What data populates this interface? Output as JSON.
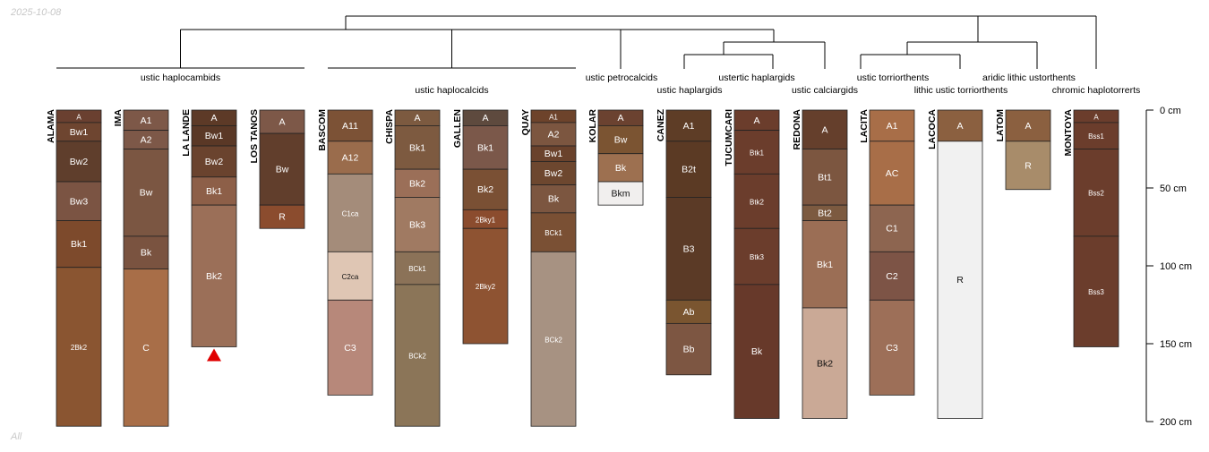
{
  "header": {
    "date": "2025-10-08",
    "panel_label": "All"
  },
  "diagram": {
    "depth_axis": {
      "unit": "cm",
      "max_depth": 200,
      "ticks": [
        {
          "depth": 0,
          "label": "0 cm"
        },
        {
          "depth": 50,
          "label": "50 cm"
        },
        {
          "depth": 100,
          "label": "100 cm"
        },
        {
          "depth": 150,
          "label": "150 cm"
        },
        {
          "depth": 200,
          "label": "200 cm"
        }
      ]
    },
    "groups": [
      {
        "id": "g1",
        "label": "ustic haplocambids",
        "members": [
          "ALAMA",
          "IMA",
          "LA LANDE",
          "LOS TANOS"
        ]
      },
      {
        "id": "g2",
        "label": "ustic haplocalcids",
        "members": [
          "BASCOM",
          "CHISPA",
          "GALLEN",
          "QUAY"
        ]
      },
      {
        "id": "g3",
        "label": "ustic petrocalcids",
        "members": [
          "KOLAR"
        ]
      },
      {
        "id": "g4",
        "label": "ustic haplargids",
        "members": [
          "CANEZ"
        ]
      },
      {
        "id": "g5",
        "label": "ustertic haplargids",
        "members": [
          "TUCUMCARI"
        ]
      },
      {
        "id": "g6",
        "label": "ustic calciargids",
        "members": [
          "REDONA"
        ]
      },
      {
        "id": "g7",
        "label": "ustic torriorthents",
        "members": [
          "LACITA"
        ]
      },
      {
        "id": "g8",
        "label": "lithic ustic torriorthents",
        "members": [
          "LACOCA"
        ]
      },
      {
        "id": "g9",
        "label": "aridic lithic ustorthents",
        "members": [
          "LATOM"
        ]
      },
      {
        "id": "g10",
        "label": "chromic haplotorrerts",
        "members": [
          "MONTOYA"
        ]
      }
    ],
    "profiles": [
      {
        "name": "ALAMA",
        "horizons": [
          {
            "name": "A",
            "top": 0,
            "bottom": 8,
            "color": "#6a4030"
          },
          {
            "name": "Bw1",
            "top": 8,
            "bottom": 20,
            "color": "#6e4530"
          },
          {
            "name": "Bw2",
            "top": 20,
            "bottom": 46,
            "color": "#5f3e2c"
          },
          {
            "name": "Bw3",
            "top": 46,
            "bottom": 71,
            "color": "#7b5443"
          },
          {
            "name": "Bk1",
            "top": 71,
            "bottom": 101,
            "color": "#7d4a2c"
          },
          {
            "name": "2Bk2",
            "top": 101,
            "bottom": 203,
            "color": "#8a5531"
          }
        ]
      },
      {
        "name": "IMA",
        "horizons": [
          {
            "name": "A1",
            "top": 0,
            "bottom": 13,
            "color": "#7d5848"
          },
          {
            "name": "A2",
            "top": 13,
            "bottom": 25,
            "color": "#7d5848"
          },
          {
            "name": "Bw",
            "top": 25,
            "bottom": 81,
            "color": "#7b5642"
          },
          {
            "name": "Bk",
            "top": 81,
            "bottom": 102,
            "color": "#7a5340"
          },
          {
            "name": "C",
            "top": 102,
            "bottom": 203,
            "color": "#a86e48"
          }
        ]
      },
      {
        "name": "LA LANDE",
        "horizons": [
          {
            "name": "A",
            "top": 0,
            "bottom": 10,
            "color": "#5d3a27"
          },
          {
            "name": "Bw1",
            "top": 10,
            "bottom": 23,
            "color": "#5a3826"
          },
          {
            "name": "Bw2",
            "top": 23,
            "bottom": 43,
            "color": "#6a432e"
          },
          {
            "name": "Bk1",
            "top": 43,
            "bottom": 61,
            "color": "#8d5f48"
          },
          {
            "name": "Bk2",
            "top": 61,
            "bottom": 152,
            "color": "#9b6f58"
          }
        ],
        "truncated": true
      },
      {
        "name": "LOS TANOS",
        "horizons": [
          {
            "name": "A",
            "top": 0,
            "bottom": 15,
            "color": "#7d5848"
          },
          {
            "name": "Bw",
            "top": 15,
            "bottom": 61,
            "color": "#613e2c"
          },
          {
            "name": "R",
            "top": 61,
            "bottom": 76,
            "color": "#8b4c2e"
          }
        ]
      },
      {
        "name": "BASCOM",
        "horizons": [
          {
            "name": "A11",
            "top": 0,
            "bottom": 20,
            "color": "#7c5236"
          },
          {
            "name": "A12",
            "top": 20,
            "bottom": 41,
            "color": "#9a6c4c"
          },
          {
            "name": "C1ca",
            "top": 41,
            "bottom": 91,
            "color": "#a48c7a"
          },
          {
            "name": "C2ca",
            "top": 91,
            "bottom": 122,
            "color": "#dfc6b4"
          },
          {
            "name": "C3",
            "top": 122,
            "bottom": 183,
            "color": "#b7887a"
          }
        ]
      },
      {
        "name": "CHISPA",
        "horizons": [
          {
            "name": "A",
            "top": 0,
            "bottom": 10,
            "color": "#7c5a40"
          },
          {
            "name": "Bk1",
            "top": 10,
            "bottom": 38,
            "color": "#7d5a40"
          },
          {
            "name": "Bk2",
            "top": 38,
            "bottom": 56,
            "color": "#9b6f58"
          },
          {
            "name": "Bk3",
            "top": 56,
            "bottom": 91,
            "color": "#a07a62"
          },
          {
            "name": "BCk1",
            "top": 91,
            "bottom": 112,
            "color": "#8b7258"
          },
          {
            "name": "BCk2",
            "top": 112,
            "bottom": 203,
            "color": "#8b7558"
          }
        ]
      },
      {
        "name": "GALLEN",
        "horizons": [
          {
            "name": "A",
            "top": 0,
            "bottom": 10,
            "color": "#5e4a3e"
          },
          {
            "name": "Bk1",
            "top": 10,
            "bottom": 38,
            "color": "#7b584a"
          },
          {
            "name": "Bk2",
            "top": 38,
            "bottom": 64,
            "color": "#7a5034"
          },
          {
            "name": "2Bky1",
            "top": 64,
            "bottom": 76,
            "color": "#8b4c2e"
          },
          {
            "name": "2Bky2",
            "top": 76,
            "bottom": 150,
            "color": "#8e5332"
          }
        ]
      },
      {
        "name": "QUAY",
        "horizons": [
          {
            "name": "A1",
            "top": 0,
            "bottom": 8,
            "color": "#6d432b"
          },
          {
            "name": "A2",
            "top": 8,
            "bottom": 23,
            "color": "#7c5640"
          },
          {
            "name": "Bw1",
            "top": 23,
            "bottom": 33,
            "color": "#6a422c"
          },
          {
            "name": "Bw2",
            "top": 33,
            "bottom": 48,
            "color": "#6d472f"
          },
          {
            "name": "Bk",
            "top": 48,
            "bottom": 66,
            "color": "#7c5640"
          },
          {
            "name": "BCk1",
            "top": 66,
            "bottom": 91,
            "color": "#7a5034"
          },
          {
            "name": "BCk2",
            "top": 91,
            "bottom": 203,
            "color": "#a79282"
          }
        ]
      },
      {
        "name": "KOLAR",
        "horizons": [
          {
            "name": "A",
            "top": 0,
            "bottom": 10,
            "color": "#6b4230"
          },
          {
            "name": "Bw",
            "top": 10,
            "bottom": 28,
            "color": "#7b5432"
          },
          {
            "name": "Bk",
            "top": 28,
            "bottom": 46,
            "color": "#9d7050"
          },
          {
            "name": "Bkm",
            "top": 46,
            "bottom": 61,
            "color": "#f1efee"
          }
        ]
      },
      {
        "name": "CANEZ",
        "horizons": [
          {
            "name": "A1",
            "top": 0,
            "bottom": 20,
            "color": "#5e3d26"
          },
          {
            "name": "B2t",
            "top": 20,
            "bottom": 56,
            "color": "#5b3a24"
          },
          {
            "name": "B3",
            "top": 56,
            "bottom": 122,
            "color": "#5b3a26"
          },
          {
            "name": "Ab",
            "top": 122,
            "bottom": 137,
            "color": "#7a5530"
          },
          {
            "name": "Bb",
            "top": 137,
            "bottom": 170,
            "color": "#7d5642"
          }
        ]
      },
      {
        "name": "TUCUMCARI",
        "horizons": [
          {
            "name": "A",
            "top": 0,
            "bottom": 13,
            "color": "#6b3d2c"
          },
          {
            "name": "Btk1",
            "top": 13,
            "bottom": 41,
            "color": "#6b3d2c"
          },
          {
            "name": "Btk2",
            "top": 41,
            "bottom": 76,
            "color": "#6b3d2c"
          },
          {
            "name": "Btk3",
            "top": 76,
            "bottom": 112,
            "color": "#6b3d2c"
          },
          {
            "name": "Bk",
            "top": 112,
            "bottom": 198,
            "color": "#67392a"
          }
        ]
      },
      {
        "name": "REDONA",
        "horizons": [
          {
            "name": "A",
            "top": 0,
            "bottom": 25,
            "color": "#653f2c"
          },
          {
            "name": "Bt1",
            "top": 25,
            "bottom": 61,
            "color": "#7c5640"
          },
          {
            "name": "Bt2",
            "top": 61,
            "bottom": 71,
            "color": "#7c5a40"
          },
          {
            "name": "Bk1",
            "top": 71,
            "bottom": 127,
            "color": "#9b6e55"
          },
          {
            "name": "Bk2",
            "top": 127,
            "bottom": 198,
            "color": "#caa996"
          }
        ]
      },
      {
        "name": "LACITA",
        "horizons": [
          {
            "name": "A1",
            "top": 0,
            "bottom": 20,
            "color": "#a86e48"
          },
          {
            "name": "AC",
            "top": 20,
            "bottom": 61,
            "color": "#a86e48"
          },
          {
            "name": "C1",
            "top": 61,
            "bottom": 91,
            "color": "#8d6550"
          },
          {
            "name": "C2",
            "top": 91,
            "bottom": 122,
            "color": "#7d5446"
          },
          {
            "name": "C3",
            "top": 122,
            "bottom": 183,
            "color": "#9d6f58"
          }
        ]
      },
      {
        "name": "LACOCA",
        "horizons": [
          {
            "name": "A",
            "top": 0,
            "bottom": 20,
            "color": "#8b6040"
          },
          {
            "name": "R",
            "top": 20,
            "bottom": 198,
            "color": "#f1f1f1"
          }
        ]
      },
      {
        "name": "LATOM",
        "horizons": [
          {
            "name": "A",
            "top": 0,
            "bottom": 20,
            "color": "#8b6040"
          },
          {
            "name": "R",
            "top": 20,
            "bottom": 51,
            "color": "#a88c6a"
          }
        ]
      },
      {
        "name": "MONTOYA",
        "horizons": [
          {
            "name": "A",
            "top": 0,
            "bottom": 8,
            "color": "#6b3d2c"
          },
          {
            "name": "Bss1",
            "top": 8,
            "bottom": 25,
            "color": "#6b3d2c"
          },
          {
            "name": "Bss2",
            "top": 25,
            "bottom": 81,
            "color": "#6b3d2c"
          },
          {
            "name": "Bss3",
            "top": 81,
            "bottom": 152,
            "color": "#6b3d2c"
          }
        ]
      }
    ]
  }
}
